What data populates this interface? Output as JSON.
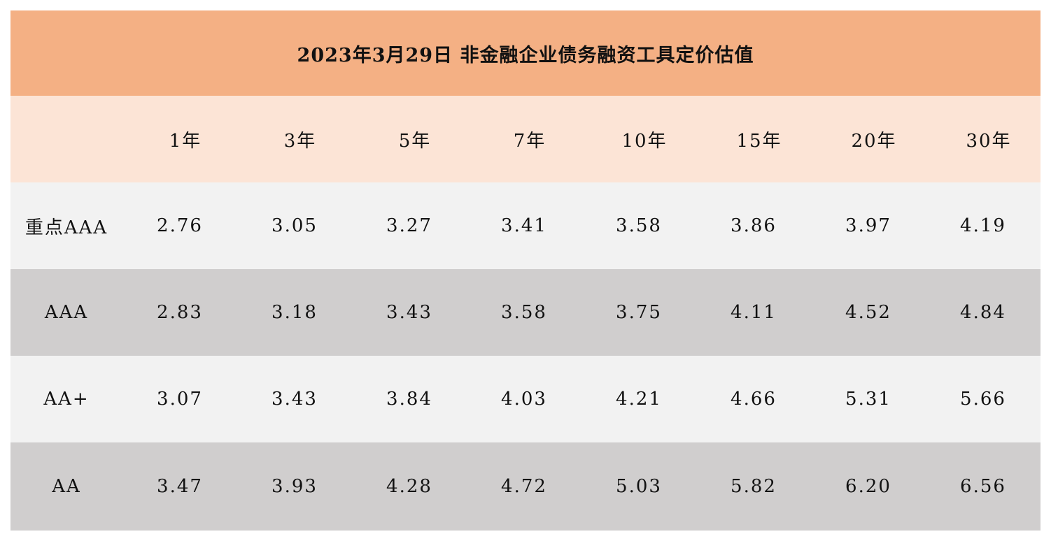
{
  "chart_data": {
    "type": "table",
    "title": "2023年3月29日  非金融企业债务融资工具定价估值",
    "columns": [
      "",
      "1年",
      "3年",
      "5年",
      "7年",
      "10年",
      "15年",
      "20年",
      "30年"
    ],
    "rows": [
      {
        "label": "重点AAA",
        "values": [
          "2.76",
          "3.05",
          "3.27",
          "3.41",
          "3.58",
          "3.86",
          "3.97",
          "4.19"
        ]
      },
      {
        "label": "AAA",
        "values": [
          "2.83",
          "3.18",
          "3.43",
          "3.58",
          "3.75",
          "4.11",
          "4.52",
          "4.84"
        ]
      },
      {
        "label": "AA+",
        "values": [
          "3.07",
          "3.43",
          "3.84",
          "4.03",
          "4.21",
          "4.66",
          "5.31",
          "5.66"
        ]
      },
      {
        "label": "AA",
        "values": [
          "3.47",
          "3.93",
          "4.28",
          "4.72",
          "5.03",
          "5.82",
          "6.20",
          "6.56"
        ]
      }
    ]
  },
  "colors": {
    "title_bg": "#f4b084",
    "header_bg": "#fce4d6",
    "row_light": "#f2f2f2",
    "row_dark": "#d0cece"
  }
}
